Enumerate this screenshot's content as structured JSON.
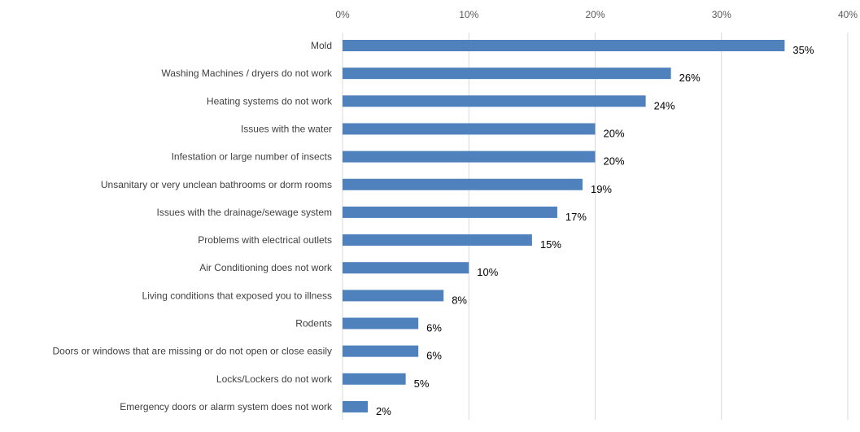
{
  "chart_data": {
    "type": "bar",
    "orientation": "horizontal",
    "categories": [
      "Mold",
      "Washing Machines / dryers do not work",
      "Heating systems do not work",
      "Issues with the water",
      "Infestation or large number of insects",
      "Unsanitary or very unclean bathrooms or dorm rooms",
      "Issues with the drainage/sewage system",
      "Problems with electrical outlets",
      "Air Conditioning does not work",
      "Living conditions that exposed you to illness",
      "Rodents",
      "Doors or windows that are missing or do not open or close easily",
      "Locks/Lockers do not work",
      "Emergency doors or alarm system does not work"
    ],
    "values": [
      35,
      26,
      24,
      20,
      20,
      19,
      17,
      15,
      10,
      8,
      6,
      6,
      5,
      2
    ],
    "data_labels": [
      "35%",
      "26%",
      "24%",
      "20%",
      "20%",
      "19%",
      "17%",
      "15%",
      "10%",
      "8%",
      "6%",
      "6%",
      "5%",
      "2%"
    ],
    "xlim": [
      0,
      40
    ],
    "x_ticks": [
      "0%",
      "10%",
      "20%",
      "30%",
      "40%"
    ],
    "x_axis_position": "top",
    "grid": true,
    "bar_color": "#4f81bd",
    "grid_color": "#d9d9d9"
  }
}
